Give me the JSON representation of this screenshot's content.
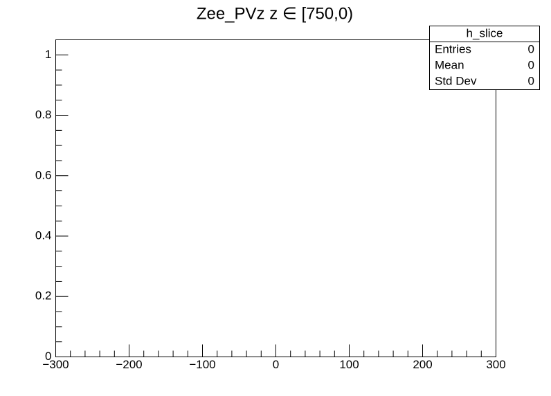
{
  "chart_data": {
    "type": "histogram",
    "title": "Zee_PVz z ∈ [750,0)",
    "xlim": [
      -300,
      300
    ],
    "xticks": [
      {
        "value": -300,
        "label": "−300"
      },
      {
        "value": -200,
        "label": "−200"
      },
      {
        "value": -100,
        "label": "−100"
      },
      0,
      100,
      200,
      300
    ],
    "ylim": [
      0,
      1.05
    ],
    "yticks": [
      0,
      0.2,
      0.4,
      0.6,
      0.8,
      1
    ],
    "color": "#000000",
    "stats": {
      "name": "h_slice",
      "rows": [
        {
          "label": "Entries",
          "value": 0
        },
        {
          "label": "Mean",
          "value": 0
        },
        {
          "label": "Std Dev",
          "value": 0
        }
      ]
    }
  }
}
